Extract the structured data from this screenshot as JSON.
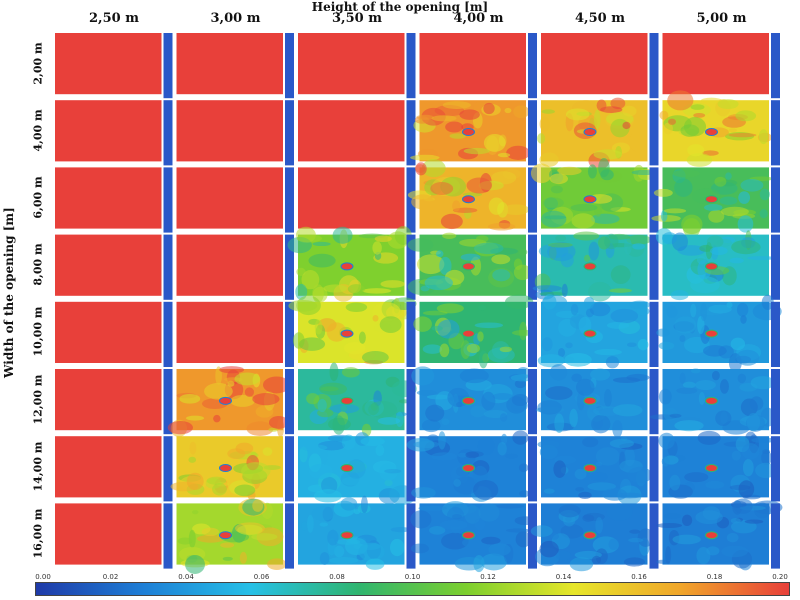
{
  "chart_data": {
    "type": "heatmap",
    "title": "",
    "top_axis_title": "Height of the opening [m]",
    "left_axis_title": "Width of the opening [m]",
    "columns": [
      "2,50 m",
      "3,00 m",
      "3,50 m",
      "4,00 m",
      "4,50 m",
      "5,00 m"
    ],
    "rows": [
      "2,00 m",
      "4,00 m",
      "6,00 m",
      "8,00 m",
      "10,00 m",
      "12,00 m",
      "14,00 m",
      "16,00 m"
    ],
    "panel_mean_values": [
      [
        0.2,
        0.2,
        0.2,
        0.2,
        0.2,
        0.2
      ],
      [
        0.2,
        0.2,
        0.2,
        0.175,
        0.16,
        0.15
      ],
      [
        0.2,
        0.2,
        0.2,
        0.165,
        0.11,
        0.095
      ],
      [
        0.2,
        0.2,
        0.115,
        0.095,
        0.07,
        0.065
      ],
      [
        0.2,
        0.2,
        0.14,
        0.085,
        0.045,
        0.04
      ],
      [
        0.2,
        0.175,
        0.075,
        0.035,
        0.035,
        0.035
      ],
      [
        0.2,
        0.155,
        0.05,
        0.03,
        0.03,
        0.03
      ],
      [
        0.2,
        0.125,
        0.045,
        0.03,
        0.028,
        0.028
      ]
    ],
    "colorbar": {
      "min": 0.0,
      "max": 0.2,
      "tick_labels": [
        "0.00",
        "0.02",
        "0.04",
        "0.06",
        "0.08",
        "0.10",
        "0.12",
        "0.14",
        "0.16",
        "0.18",
        "0.20"
      ],
      "colors": [
        "#1f3aa8",
        "#1e7fd6",
        "#26c0e6",
        "#2fb56f",
        "#7ccf2e",
        "#e6e62a",
        "#f0a52a",
        "#e8403a"
      ]
    },
    "xlabel": "Height of the opening [m]",
    "ylabel": "Width of the opening [m]"
  }
}
